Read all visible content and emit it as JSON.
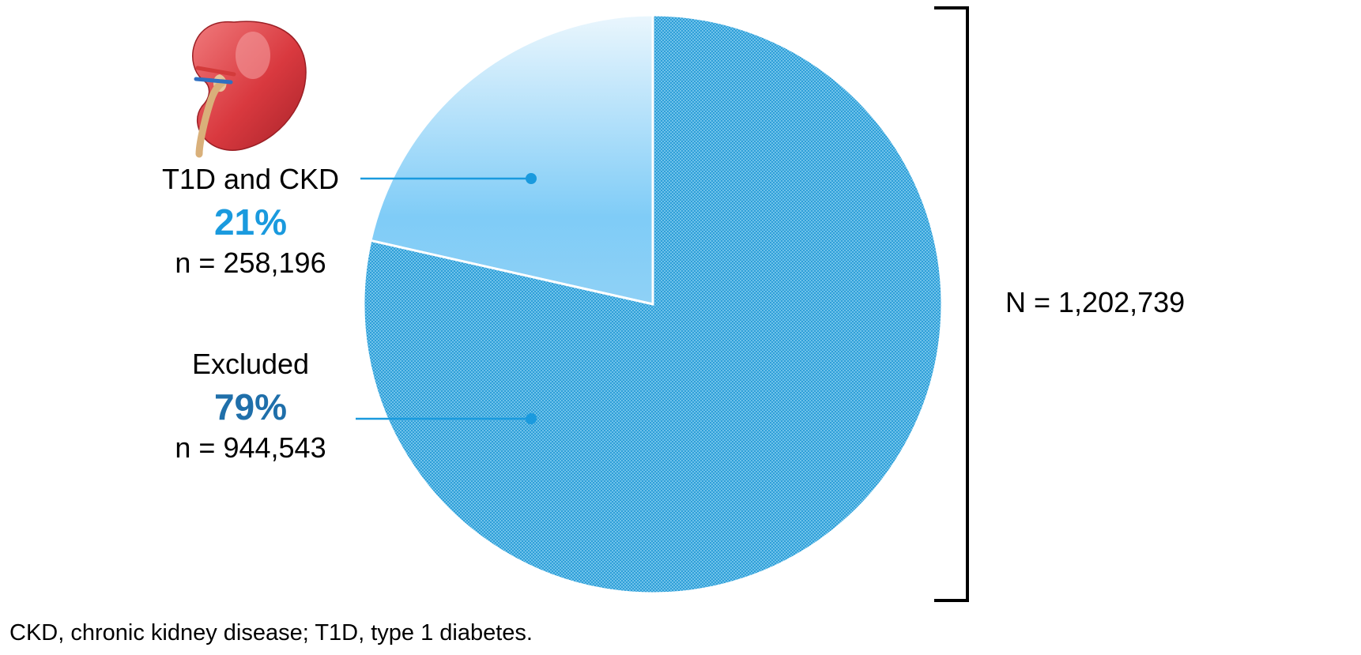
{
  "chart_data": {
    "type": "pie",
    "title": "",
    "total_label": "N = 1,202,739",
    "total_value": 1202739,
    "slices": [
      {
        "label": "T1D and CKD",
        "percent_text": "21%",
        "percent": 21,
        "n_text": "n = 258,196",
        "n": 258196,
        "color": "#7fccf7",
        "fill": "gradient"
      },
      {
        "label": "Excluded",
        "percent_text": "79%",
        "percent": 79,
        "n_text": "n = 944,543",
        "n": 944543,
        "color": "#58b8e6",
        "fill": "dotted pattern"
      }
    ],
    "footnote": "CKD, chronic kidney disease; T1D, type 1 diabetes."
  },
  "colors": {
    "accent_t1d": "#1a9ade",
    "accent_excluded": "#1f6faa",
    "slice_t1d_light": "#eaf6fd",
    "slice_t1d_mid": "#7fccf7",
    "slice_excluded": "#58b8e6",
    "leader_line": "#1a9ade",
    "bracket": "#000000"
  },
  "icons": {
    "kidney": "kidney-icon"
  }
}
